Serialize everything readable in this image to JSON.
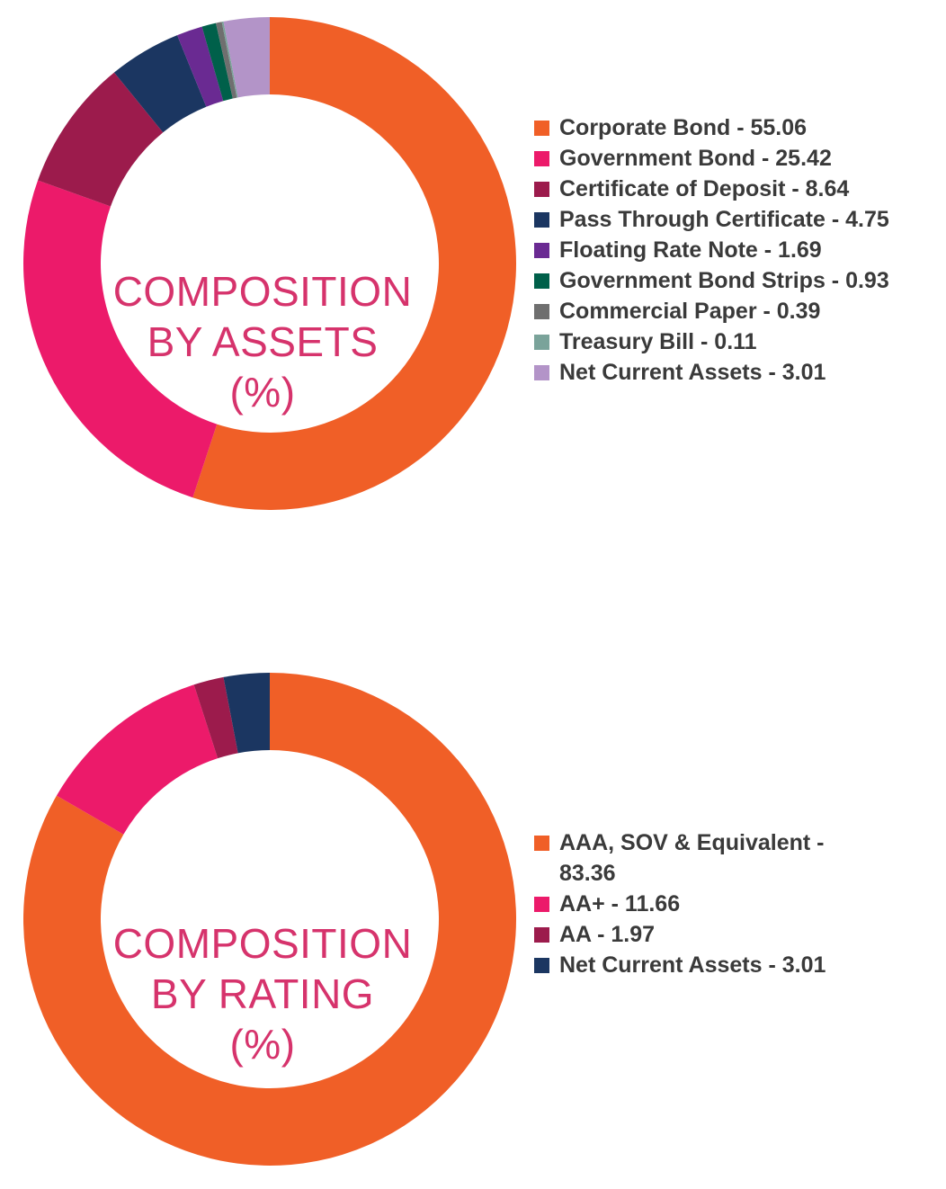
{
  "chart_data": [
    {
      "type": "pie",
      "donut": true,
      "center_label": [
        "COMPOSITION",
        "BY ASSETS",
        "(%)"
      ],
      "slices": [
        {
          "label": "Corporate Bond",
          "value": 55.06,
          "color": "#f05f27",
          "legend": "Corporate Bond - 55.06"
        },
        {
          "label": "Government Bond",
          "value": 25.42,
          "color": "#ec1a6a",
          "legend": "Government Bond - 25.42"
        },
        {
          "label": "Certificate of Deposit",
          "value": 8.64,
          "color": "#9c1b4c",
          "legend": "Certificate of Deposit - 8.64"
        },
        {
          "label": "Pass Through Certificate",
          "value": 4.75,
          "color": "#1b3661",
          "legend": "Pass Through Certificate - 4.75"
        },
        {
          "label": "Floating Rate Note",
          "value": 1.69,
          "color": "#6a2a92",
          "legend": "Floating Rate Note - 1.69"
        },
        {
          "label": "Government Bond Strips",
          "value": 0.93,
          "color": "#00604a",
          "legend": "Government Bond Strips - 0.93"
        },
        {
          "label": "Commercial Paper",
          "value": 0.39,
          "color": "#6f6f6f",
          "legend": "Commercial Paper - 0.39"
        },
        {
          "label": "Treasury Bill",
          "value": 0.11,
          "color": "#7aa39a",
          "legend": "Treasury Bill - 0.11"
        },
        {
          "label": "Net Current Assets",
          "value": 3.01,
          "color": "#b394c8",
          "legend": "Net Current Assets - 3.01"
        }
      ],
      "legend_position": "right"
    },
    {
      "type": "pie",
      "donut": true,
      "center_label": [
        "COMPOSITION",
        "BY RATING",
        "(%)"
      ],
      "slices": [
        {
          "label": "AAA, SOV & Equivalent",
          "value": 83.36,
          "color": "#f05f27",
          "legend": "AAA, SOV & Equivalent - 83.36"
        },
        {
          "label": "AA+",
          "value": 11.66,
          "color": "#ec1a6a",
          "legend": "AA+ - 11.66"
        },
        {
          "label": "AA",
          "value": 1.97,
          "color": "#9c1b4c",
          "legend": "AA - 1.97"
        },
        {
          "label": "Net Current Assets",
          "value": 3.01,
          "color": "#1b3661",
          "legend": "Net Current Assets - 3.01"
        }
      ],
      "legend_position": "right"
    }
  ]
}
